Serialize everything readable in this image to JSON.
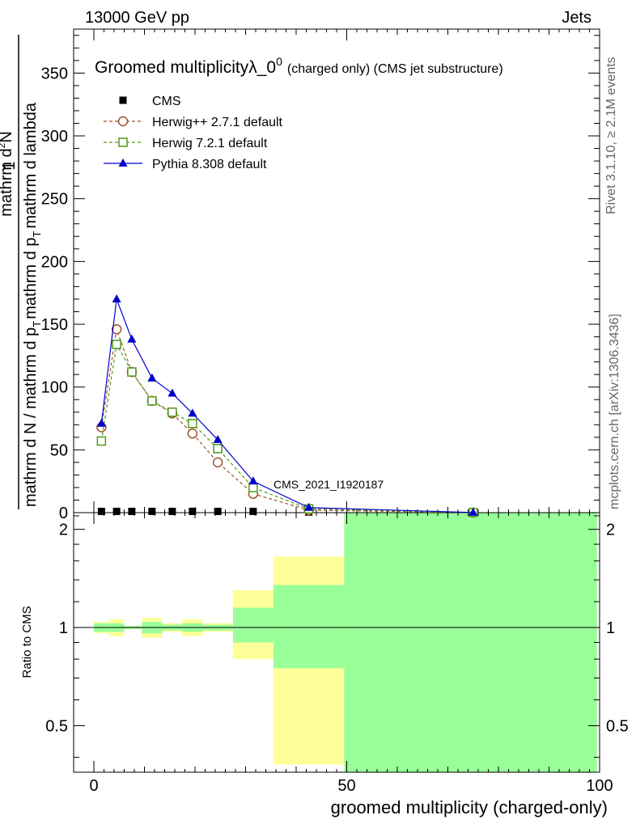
{
  "header": {
    "left": "13000 GeV pp",
    "right": "Jets"
  },
  "side": {
    "rivet": "Rivet 3.1.10, ≥ 2.1M events",
    "mcplots": "mcplots.cern.ch [arXiv:1306.3436]"
  },
  "chart_data": {
    "type": "line",
    "title": "Groomed multiplicityλ_0",
    "title_sup": "0",
    "title_suffix": "(charged only) (CMS jet substructure)",
    "analysis_label": "CMS_2021_I1920187",
    "ylabel_num": "1",
    "ylabel_den": "mathrm d N / mathrm d p",
    "ylabel_den_sub": "T",
    "ylabel_den2": "mathrm d p",
    "ylabel_den2_sub": "T",
    "ylabel_den3": "mathrm d lambda",
    "ylabel_top": "mathrm d",
    "ylabel_top_sup": "2",
    "ylabel_top2": "N",
    "ratio_ylabel": "Ratio to CMS",
    "xlabel": "groomed multiplicity (charged-only)",
    "xlim": [
      -4,
      100
    ],
    "ylim": [
      0,
      385
    ],
    "ratio_ylim": [
      0.36,
      2.25
    ],
    "x_ticks": [
      0,
      50,
      100
    ],
    "y_ticks": [
      0,
      50,
      100,
      150,
      200,
      250,
      300,
      350
    ],
    "ratio_ticks": [
      0.5,
      1,
      2
    ],
    "ratio_tick_labels": [
      "0.5",
      "1",
      "2"
    ],
    "series": [
      {
        "name": "CMS",
        "color": "#000000",
        "marker": "square-filled",
        "x": [
          1.5,
          4.5,
          7.5,
          11.5,
          15.5,
          19.5,
          24.5,
          31.5,
          42.5,
          75
        ],
        "y": [
          1,
          1,
          1,
          1,
          1,
          1,
          1,
          1,
          0.5,
          0.1
        ]
      },
      {
        "name": "Herwig++ 2.7.1 default",
        "color": "#a0522d",
        "marker": "circle-open",
        "x": [
          1.5,
          4.5,
          7.5,
          11.5,
          15.5,
          19.5,
          24.5,
          31.5,
          42.5,
          75
        ],
        "y": [
          68,
          146,
          112,
          89,
          79,
          63,
          40,
          15,
          2,
          0.1
        ]
      },
      {
        "name": "Herwig 7.2.1 default",
        "color": "#4f9a18",
        "marker": "square-open",
        "x": [
          1.5,
          4.5,
          7.5,
          11.5,
          15.5,
          19.5,
          24.5,
          31.5,
          42.5,
          75
        ],
        "y": [
          57,
          134,
          112,
          89,
          80,
          71,
          51,
          20,
          3,
          0.1
        ]
      },
      {
        "name": "Pythia 8.308 default",
        "color": "#0000cc",
        "marker": "triangle-filled",
        "x": [
          1.5,
          4.5,
          7.5,
          11.5,
          15.5,
          19.5,
          24.5,
          31.5,
          42.5,
          75
        ],
        "y": [
          71,
          170,
          138,
          107,
          95,
          79,
          58,
          25,
          4,
          0.1
        ]
      }
    ],
    "ratio_bands": [
      {
        "x0": 0,
        "x1": 3,
        "y_lo": 0.96,
        "y_hi": 1.04,
        "y2_lo": 0.97,
        "y2_hi": 1.03
      },
      {
        "x0": 3,
        "x1": 6,
        "y_lo": 0.94,
        "y_hi": 1.06,
        "y2_lo": 0.97,
        "y2_hi": 1.03
      },
      {
        "x0": 6,
        "x1": 9.5,
        "y_lo": 0.99,
        "y_hi": 1.01,
        "y2_lo": 0.99,
        "y2_hi": 1.01
      },
      {
        "x0": 9.5,
        "x1": 13.5,
        "y_lo": 0.93,
        "y_hi": 1.07,
        "y2_lo": 0.96,
        "y2_hi": 1.04
      },
      {
        "x0": 13.5,
        "x1": 17.5,
        "y_lo": 0.97,
        "y_hi": 1.03,
        "y2_lo": 0.98,
        "y2_hi": 1.02
      },
      {
        "x0": 17.5,
        "x1": 21.5,
        "y_lo": 0.94,
        "y_hi": 1.06,
        "y2_lo": 0.97,
        "y2_hi": 1.03
      },
      {
        "x0": 21.5,
        "x1": 27.5,
        "y_lo": 0.97,
        "y_hi": 1.03,
        "y2_lo": 0.98,
        "y2_hi": 1.02
      },
      {
        "x0": 27.5,
        "x1": 35.5,
        "y_lo": 0.8,
        "y_hi": 1.3,
        "y2_lo": 0.9,
        "y2_hi": 1.15
      },
      {
        "x0": 35.5,
        "x1": 49.5,
        "y_lo": 0.38,
        "y_hi": 1.65,
        "y2_lo": 0.75,
        "y2_hi": 1.35
      },
      {
        "x0": 49.5,
        "x1": 99.5,
        "y_lo": 0.36,
        "y_hi": 2.25,
        "y2_lo": 0.36,
        "y2_hi": 2.25
      }
    ],
    "band_colors": {
      "outer": "#ffff99",
      "inner": "#99ff99"
    }
  }
}
